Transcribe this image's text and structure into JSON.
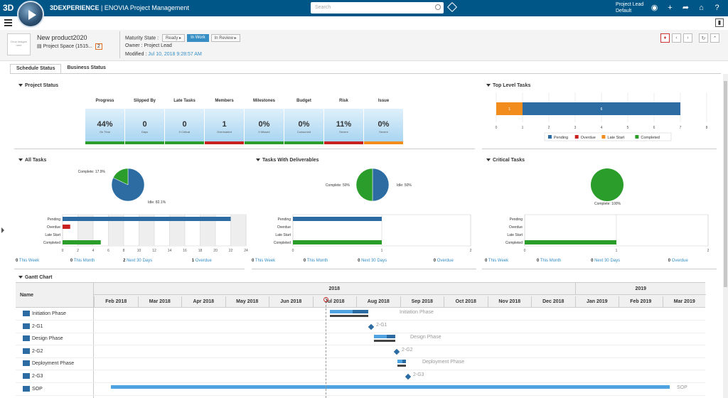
{
  "app": {
    "brand": "3D",
    "title_bold": "3DEXPERIENCE",
    "title_rest": "| ENOVIA  Project Management",
    "search_placeholder": "Search",
    "user_role": "Project Lead",
    "user_context": "Default"
  },
  "object": {
    "thumb_text": "Drop images here",
    "name": "New product2020",
    "space": "Project Space (1515...",
    "badge": "2",
    "maturity_label": "Maturity State :",
    "states": [
      "Ready",
      "In Work",
      "In Review"
    ],
    "active_state": "In Work",
    "owner": "Owner : Project Lead",
    "modified_label": "Modified : ",
    "modified_value": "Jul 10, 2018 9:28:57 AM"
  },
  "tabs": [
    "Schedule Status",
    "Business Status"
  ],
  "sections": {
    "project_status": "Project Status",
    "top_level": "Top Level Tasks",
    "all_tasks": "All Tasks",
    "with_deliverables": "Tasks With Deliverables",
    "critical": "Critical Tasks",
    "gantt": "Gantt Chart"
  },
  "kpis": [
    {
      "label": "Progress",
      "value": "44%",
      "sub": "On Time",
      "status": "green"
    },
    {
      "label": "Slipped By",
      "value": "0",
      "sub": "Days",
      "status": "green"
    },
    {
      "label": "Late Tasks",
      "value": "0",
      "sub": "0 Critical",
      "status": "green"
    },
    {
      "label": "Members",
      "value": "1",
      "sub": "Overloaded",
      "status": "red"
    },
    {
      "label": "Milestones",
      "value": "0%",
      "sub": "0 Missed",
      "status": "green"
    },
    {
      "label": "Budget",
      "value": "0%",
      "sub": "Consumed",
      "status": "green"
    },
    {
      "label": "Risk",
      "value": "11%",
      "sub": "Severe",
      "status": "red"
    },
    {
      "label": "Issue",
      "value": "0%",
      "sub": "Severe",
      "status": "orange"
    }
  ],
  "link_labels": {
    "week": "This Week",
    "month": "This Month",
    "next30": "Next 30 Days",
    "overdue": "Overdue"
  },
  "links_all": [
    "0",
    "0",
    "2",
    "1"
  ],
  "links_del": [
    "0",
    "0",
    "0",
    "0"
  ],
  "links_crit": [
    "0",
    "0",
    "0",
    "0"
  ],
  "chart_data": [
    {
      "type": "bar",
      "title": "Top Level Tasks",
      "orientation": "horizontal",
      "stacked": true,
      "series": [
        {
          "name": "Pending",
          "color": "#2d6ca2",
          "values": [
            6
          ]
        },
        {
          "name": "Overdue",
          "color": "#c92020",
          "values": [
            0
          ]
        },
        {
          "name": "Late Start",
          "color": "#f28c1d",
          "values": [
            1
          ]
        },
        {
          "name": "Completed",
          "color": "#2a9d2a",
          "values": [
            0
          ]
        }
      ],
      "xlim": [
        0,
        8
      ],
      "ticks": [
        "0",
        "1",
        "2",
        "3",
        "4",
        "5",
        "6",
        "7",
        "8"
      ],
      "data_labels": [
        "1",
        "6"
      ],
      "legend": "bottom"
    },
    {
      "type": "pie",
      "title": "All Tasks",
      "slices": [
        {
          "name": "Idle",
          "value": 82.1,
          "color": "#2d6ca2"
        },
        {
          "name": "Complete",
          "value": 17.9,
          "color": "#2a9d2a"
        }
      ],
      "labels": [
        "Idle: 82.1%",
        "Complete: 17.9%"
      ]
    },
    {
      "type": "bar",
      "title": "All Tasks",
      "orientation": "horizontal",
      "categories": [
        "Pending",
        "Overdue",
        "Late Start",
        "Completed"
      ],
      "values": [
        22,
        1,
        0,
        5
      ],
      "colors": [
        "#2d6ca2",
        "#c92020",
        "#f28c1d",
        "#2a9d2a"
      ],
      "xlim": [
        0,
        24
      ],
      "ticks": [
        "0",
        "2",
        "4",
        "6",
        "8",
        "10",
        "12",
        "14",
        "16",
        "18",
        "20",
        "22",
        "24"
      ]
    },
    {
      "type": "pie",
      "title": "Tasks With Deliverables",
      "slices": [
        {
          "name": "Idle",
          "value": 50,
          "color": "#2d6ca2"
        },
        {
          "name": "Complete",
          "value": 50,
          "color": "#2a9d2a"
        }
      ],
      "labels": [
        "Idle: 50%",
        "Complete: 50%"
      ]
    },
    {
      "type": "bar",
      "title": "Tasks With Deliverables",
      "orientation": "horizontal",
      "categories": [
        "Pending",
        "Overdue",
        "Late Start",
        "Completed"
      ],
      "values": [
        1,
        0,
        0,
        1
      ],
      "colors": [
        "#2d6ca2",
        "#c92020",
        "#f28c1d",
        "#2a9d2a"
      ],
      "xlim": [
        0,
        2
      ],
      "ticks": [
        "0",
        "1",
        "2"
      ]
    },
    {
      "type": "pie",
      "title": "Critical Tasks",
      "slices": [
        {
          "name": "Complete",
          "value": 100,
          "color": "#2a9d2a"
        }
      ],
      "labels": [
        "Complete: 100%"
      ]
    },
    {
      "type": "bar",
      "title": "Critical Tasks",
      "orientation": "horizontal",
      "categories": [
        "Pending",
        "Overdue",
        "Late Start",
        "Completed"
      ],
      "values": [
        0,
        0,
        0,
        1
      ],
      "colors": [
        "#2d6ca2",
        "#c92020",
        "#f28c1d",
        "#2a9d2a"
      ],
      "xlim": [
        0,
        2
      ],
      "ticks": [
        "0",
        "1",
        "2"
      ]
    }
  ],
  "gantt": {
    "name_header": "Name",
    "years": [
      "2018",
      "2019"
    ],
    "months": [
      "Feb 2018",
      "Mar 2018",
      "Apr 2018",
      "May 2018",
      "Jun 2018",
      "Jul 2018",
      "Aug 2018",
      "Sep 2018",
      "Oct 2018",
      "Nov 2018",
      "Dec 2018",
      "Jan 2019",
      "Feb 2019",
      "Mar 2019"
    ],
    "rows": [
      {
        "name": "Initiation Phase",
        "kind": "phase",
        "label": "Initiation Phase"
      },
      {
        "name": "2-G1",
        "kind": "gate",
        "label": "2-G1"
      },
      {
        "name": "Design Phase",
        "kind": "phase",
        "label": "Design Phase"
      },
      {
        "name": "2-G2",
        "kind": "gate",
        "label": "2-G2"
      },
      {
        "name": "Deployment Phase",
        "kind": "phase",
        "label": "Deployment Phase"
      },
      {
        "name": "2-G3",
        "kind": "gate",
        "label": "2-G3"
      },
      {
        "name": "SOP",
        "kind": "phase",
        "label": "SOP"
      }
    ]
  }
}
